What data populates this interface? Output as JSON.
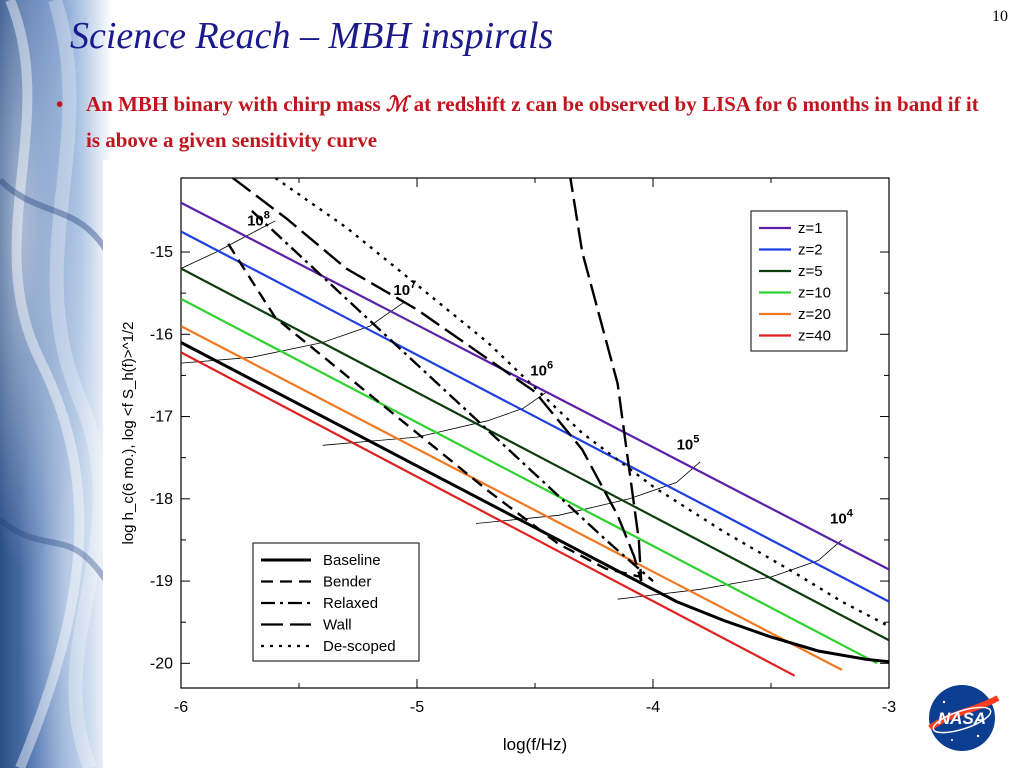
{
  "slide": {
    "number": "10",
    "title": "Science Reach – MBH inspirals",
    "bullet_marker": "•",
    "bullet_part1": "An MBH binary with chirp mass ",
    "chirp_symbol": "ℳ",
    "bullet_part2": " at redshift z can be observed by LISA for 6 months in band if it is above a given sensitivity curve",
    "logo_text": "NASA"
  },
  "chart_data": {
    "type": "line",
    "xlabel": "log(f/Hz)",
    "ylabel": "log h_c(6 mo.),  log <f S_h(f)>^1/2",
    "xlim": [
      -6,
      -3
    ],
    "ylim": [
      -20.3,
      -14.1
    ],
    "xticks": [
      -6,
      -5,
      -4,
      -3
    ],
    "xtick_labels": [
      "-6",
      "-5",
      "-4",
      "-3"
    ],
    "yticks": [
      -15,
      -16,
      -17,
      -18,
      -19,
      -20
    ],
    "ytick_labels": [
      "-15",
      "-16",
      "-17",
      "-18",
      "-19",
      "-20"
    ],
    "grid": false,
    "redshift_series": [
      {
        "name": "z=1",
        "color": "#5b1fa8",
        "x": [
          -6.0,
          -3.0
        ],
        "y": [
          -14.4,
          -18.86
        ]
      },
      {
        "name": "z=2",
        "color": "#1f3fe0",
        "x": [
          -6.0,
          -3.0
        ],
        "y": [
          -14.75,
          -19.25
        ]
      },
      {
        "name": "z=5",
        "color": "#0d3d0d",
        "x": [
          -6.0,
          -3.0
        ],
        "y": [
          -15.2,
          -19.72
        ]
      },
      {
        "name": "z=10",
        "color": "#2ed12e",
        "x": [
          -6.0,
          -3.05
        ],
        "y": [
          -15.57,
          -20.0
        ]
      },
      {
        "name": "z=20",
        "color": "#f07820",
        "x": [
          -6.0,
          -3.2
        ],
        "y": [
          -15.9,
          -20.08
        ]
      },
      {
        "name": "z=40",
        "color": "#e02020",
        "x": [
          -6.0,
          -3.4
        ],
        "y": [
          -16.22,
          -20.15
        ]
      }
    ],
    "sensitivity_curves": [
      {
        "name": "Baseline",
        "style": "solid",
        "x": [
          -6.0,
          -5.5,
          -5.0,
          -4.6,
          -4.3,
          -4.1,
          -3.9,
          -3.7,
          -3.5,
          -3.3,
          -3.1,
          -3.0
        ],
        "y": [
          -16.1,
          -16.85,
          -17.6,
          -18.2,
          -18.65,
          -18.95,
          -19.25,
          -19.48,
          -19.68,
          -19.85,
          -19.95,
          -19.98
        ]
      },
      {
        "name": "Bender",
        "style": "dashed",
        "x": [
          -5.8,
          -5.6,
          -5.3,
          -5.0,
          -4.7,
          -4.4,
          -4.2,
          -4.05
        ],
        "y": [
          -14.9,
          -15.8,
          -16.5,
          -17.2,
          -17.9,
          -18.55,
          -18.85,
          -18.95
        ]
      },
      {
        "name": "Relaxed",
        "style": "dash-dot",
        "x": [
          -5.7,
          -5.4,
          -5.1,
          -4.8,
          -4.5,
          -4.2,
          -4.0
        ],
        "y": [
          -14.5,
          -15.3,
          -16.1,
          -16.9,
          -17.7,
          -18.5,
          -19.0
        ]
      },
      {
        "name": "Wall",
        "style": "long-dash",
        "x": [
          -5.78,
          -5.55,
          -5.3,
          -5.0,
          -4.75,
          -4.5,
          -4.3,
          -4.15,
          -4.08,
          -4.05,
          -4.06,
          -4.15,
          -4.3,
          -4.35
        ],
        "y": [
          -14.1,
          -14.6,
          -15.2,
          -15.7,
          -16.2,
          -16.7,
          -17.4,
          -18.2,
          -18.7,
          -19.0,
          -18.5,
          -16.6,
          -15.0,
          -14.1
        ]
      },
      {
        "name": "De-scoped",
        "style": "dotted",
        "x": [
          -5.6,
          -5.3,
          -5.0,
          -4.7,
          -4.5,
          -4.3,
          -4.0,
          -3.7,
          -3.4,
          -3.2,
          -3.0
        ],
        "y": [
          -14.1,
          -14.7,
          -15.4,
          -16.1,
          -16.65,
          -17.2,
          -17.85,
          -18.4,
          -18.9,
          -19.25,
          -19.55
        ]
      }
    ],
    "mass_contours": [
      {
        "label_base": "10",
        "label_exp": "8",
        "label_x": -5.72,
        "label_y": -14.68,
        "x": [
          -6.0,
          -5.85,
          -5.72,
          -5.6
        ],
        "y": [
          -15.2,
          -15.0,
          -14.8,
          -14.62
        ]
      },
      {
        "label_base": "10",
        "label_exp": "7",
        "label_x": -5.1,
        "label_y": -15.52,
        "x": [
          -6.0,
          -5.7,
          -5.4,
          -5.2,
          -5.05
        ],
        "y": [
          -16.35,
          -16.28,
          -16.1,
          -15.9,
          -15.6
        ]
      },
      {
        "label_base": "10",
        "label_exp": "6",
        "label_x": -4.52,
        "label_y": -16.5,
        "x": [
          -5.4,
          -5.0,
          -4.7,
          -4.55,
          -4.45
        ],
        "y": [
          -17.35,
          -17.25,
          -17.05,
          -16.9,
          -16.7
        ]
      },
      {
        "label_base": "10",
        "label_exp": "5",
        "label_x": -3.9,
        "label_y": -17.4,
        "x": [
          -4.75,
          -4.4,
          -4.1,
          -3.9,
          -3.8
        ],
        "y": [
          -18.3,
          -18.2,
          -18.0,
          -17.8,
          -17.55
        ]
      },
      {
        "label_base": "10",
        "label_exp": "4",
        "label_x": -3.25,
        "label_y": -18.3,
        "x": [
          -4.15,
          -3.8,
          -3.5,
          -3.3,
          -3.2
        ],
        "y": [
          -19.22,
          -19.1,
          -18.95,
          -18.75,
          -18.5
        ]
      }
    ],
    "legend_redshift": {
      "placement": "top-right"
    },
    "legend_curves": {
      "placement": "bottom-left"
    }
  }
}
